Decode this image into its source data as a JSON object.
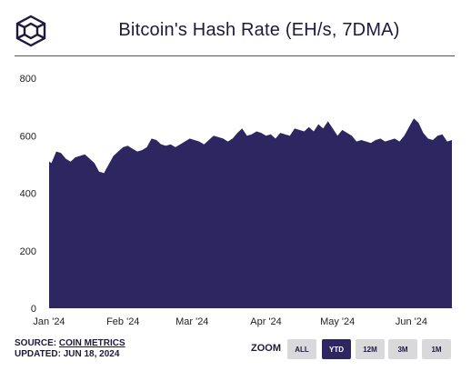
{
  "title": "Bitcoin's Hash Rate (EH/s, 7DMA)",
  "colors": {
    "area": "#2e2660",
    "rule": "#7a3a8a",
    "axis_text": "#222222",
    "button_bg": "#d9d9dc",
    "button_active_bg": "#2e2660"
  },
  "logo": {
    "icon": "coin-metrics-cube-icon"
  },
  "chart_data": {
    "type": "area",
    "title": "Bitcoin's Hash Rate (EH/s, 7DMA)",
    "xlabel": "",
    "ylabel": "",
    "ylim": [
      0,
      800
    ],
    "yticks": [
      0,
      200,
      400,
      600,
      800
    ],
    "xlim": [
      "2024-01-01",
      "2024-06-18"
    ],
    "xticks": [
      {
        "date": "2024-01-01",
        "label": "Jan '24"
      },
      {
        "date": "2024-02-01",
        "label": "Feb '24"
      },
      {
        "date": "2024-03-01",
        "label": "Mar '24"
      },
      {
        "date": "2024-04-01",
        "label": "Apr '24"
      },
      {
        "date": "2024-05-01",
        "label": "May '24"
      },
      {
        "date": "2024-06-01",
        "label": "Jun '24"
      }
    ],
    "grid": false,
    "legend": "none",
    "series": [
      {
        "x": [
          "2024-01-01",
          "2024-01-02",
          "2024-01-04",
          "2024-01-06",
          "2024-01-08",
          "2024-01-10",
          "2024-01-12",
          "2024-01-14",
          "2024-01-16",
          "2024-01-18",
          "2024-01-20",
          "2024-01-22",
          "2024-01-24",
          "2024-01-26",
          "2024-01-28",
          "2024-01-30",
          "2024-02-01",
          "2024-02-03",
          "2024-02-05",
          "2024-02-07",
          "2024-02-09",
          "2024-02-11",
          "2024-02-13",
          "2024-02-15",
          "2024-02-17",
          "2024-02-19",
          "2024-02-21",
          "2024-02-23",
          "2024-02-25",
          "2024-02-27",
          "2024-02-29",
          "2024-03-02",
          "2024-03-04",
          "2024-03-06",
          "2024-03-08",
          "2024-03-10",
          "2024-03-12",
          "2024-03-14",
          "2024-03-16",
          "2024-03-18",
          "2024-03-20",
          "2024-03-22",
          "2024-03-24",
          "2024-03-26",
          "2024-03-28",
          "2024-03-30",
          "2024-04-01",
          "2024-04-03",
          "2024-04-05",
          "2024-04-07",
          "2024-04-09",
          "2024-04-11",
          "2024-04-13",
          "2024-04-15",
          "2024-04-17",
          "2024-04-19",
          "2024-04-21",
          "2024-04-23",
          "2024-04-25",
          "2024-04-27",
          "2024-04-29",
          "2024-05-01",
          "2024-05-03",
          "2024-05-05",
          "2024-05-07",
          "2024-05-09",
          "2024-05-11",
          "2024-05-13",
          "2024-05-15",
          "2024-05-17",
          "2024-05-19",
          "2024-05-21",
          "2024-05-23",
          "2024-05-25",
          "2024-05-27",
          "2024-05-29",
          "2024-05-31",
          "2024-06-02",
          "2024-06-04",
          "2024-06-06",
          "2024-06-08",
          "2024-06-10",
          "2024-06-12",
          "2024-06-14",
          "2024-06-16",
          "2024-06-18"
        ],
        "values": [
          510,
          505,
          545,
          540,
          520,
          510,
          525,
          530,
          535,
          520,
          505,
          475,
          470,
          500,
          530,
          545,
          560,
          565,
          555,
          545,
          550,
          560,
          590,
          585,
          570,
          565,
          570,
          560,
          570,
          580,
          590,
          585,
          580,
          570,
          585,
          600,
          595,
          590,
          580,
          590,
          610,
          625,
          600,
          605,
          615,
          610,
          600,
          605,
          590,
          610,
          605,
          600,
          625,
          620,
          615,
          630,
          615,
          640,
          625,
          650,
          625,
          600,
          620,
          610,
          600,
          580,
          585,
          580,
          575,
          585,
          590,
          580,
          585,
          590,
          580,
          600,
          630,
          660,
          645,
          610,
          590,
          585,
          600,
          605,
          580,
          585
        ]
      }
    ]
  },
  "footer": {
    "source_prefix": "SOURCE: ",
    "source_link": "COIN METRICS",
    "updated": "UPDATED: JUN 18, 2024"
  },
  "zoom": {
    "label": "ZOOM",
    "buttons": [
      {
        "label": "ALL",
        "active": false
      },
      {
        "label": "YTD",
        "active": true
      },
      {
        "label": "12M",
        "active": false
      },
      {
        "label": "3M",
        "active": false
      },
      {
        "label": "1M",
        "active": false
      }
    ]
  }
}
